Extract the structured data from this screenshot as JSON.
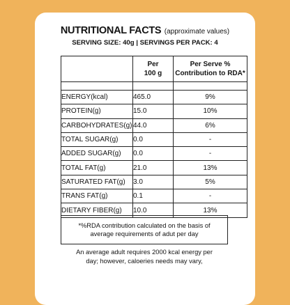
{
  "header": {
    "title": "NUTRITIONAL FACTS",
    "title_note": "(approximate values)",
    "serving": "SERVING SIZE: 40g | SERVINGS PER PACK: 4"
  },
  "table": {
    "col_per_line1": "Per",
    "col_per_line2": "100 g",
    "col_rda_line1": "Per Serve %",
    "col_rda_line2": "Contribution to RDA*",
    "rows": [
      {
        "name": "ENERGY(kcal)",
        "per100": "465.0",
        "rda": "9%"
      },
      {
        "name": "PROTEIN(g)",
        "per100": "15.0",
        "rda": "10%"
      },
      {
        "name": "CARBOHYDRATES(g)",
        "per100": "44.0",
        "rda": "6%"
      },
      {
        "name": "TOTAL SUGAR(g)",
        "per100": "0.0",
        "rda": "-"
      },
      {
        "name": "ADDED SUGAR(g)",
        "per100": "0.0",
        "rda": "-"
      },
      {
        "name": "TOTAL FAT(g)",
        "per100": "21.0",
        "rda": "13%"
      },
      {
        "name": "SATURATED FAT(g)",
        "per100": "3.0",
        "rda": "5%"
      },
      {
        "name": "TRANS FAT(g)",
        "per100": "0.1",
        "rda": "-"
      },
      {
        "name": "DIETARY FIBER(g)",
        "per100": "10.0",
        "rda": "13%"
      }
    ]
  },
  "footnote": {
    "line1": "*%RDA contribution calculated on the basis of",
    "line2": "average requirements of adut per day"
  },
  "advice": {
    "line1": "An average adult requires 2000 kcal energy per",
    "line2": "day; however, caloeries needs may vary,"
  }
}
